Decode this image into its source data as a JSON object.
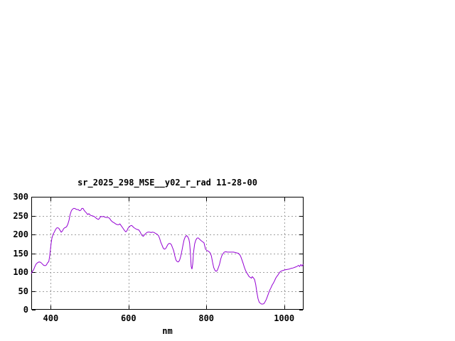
{
  "page": {
    "background": "#ffffff"
  },
  "chart_data": {
    "type": "line",
    "title": "sr_2025_298_MSE__y02_r_rad 11-28-00",
    "xlabel": "nm",
    "ylabel": "",
    "xlim": [
      350,
      1050
    ],
    "ylim": [
      0,
      300
    ],
    "xticks": [
      400,
      600,
      800,
      1000
    ],
    "yticks": [
      0,
      50,
      100,
      150,
      200,
      250,
      300
    ],
    "grid": true,
    "legend": "none",
    "line_color": "#9400d3",
    "grid_color": "#a0a0a0",
    "border_color": "#000000",
    "series": [
      {
        "name": "sr_2025_298_MSE__y02_r_rad",
        "points": [
          [
            350,
            96
          ],
          [
            353,
            102
          ],
          [
            356,
            106
          ],
          [
            359,
            114
          ],
          [
            362,
            121
          ],
          [
            366,
            125
          ],
          [
            370,
            127
          ],
          [
            374,
            126
          ],
          [
            378,
            122
          ],
          [
            382,
            118
          ],
          [
            386,
            117
          ],
          [
            389,
            119
          ],
          [
            392,
            125
          ],
          [
            395,
            128
          ],
          [
            397,
            140
          ],
          [
            399,
            158
          ],
          [
            401,
            176
          ],
          [
            403,
            190
          ],
          [
            406,
            200
          ],
          [
            409,
            206
          ],
          [
            412,
            212
          ],
          [
            415,
            217
          ],
          [
            418,
            218
          ],
          [
            421,
            216
          ],
          [
            424,
            211
          ],
          [
            427,
            206
          ],
          [
            430,
            209
          ],
          [
            433,
            215
          ],
          [
            436,
            218
          ],
          [
            439,
            219
          ],
          [
            441,
            221
          ],
          [
            444,
            227
          ],
          [
            447,
            238
          ],
          [
            450,
            253
          ],
          [
            453,
            263
          ],
          [
            456,
            267
          ],
          [
            459,
            269
          ],
          [
            462,
            269
          ],
          [
            465,
            267
          ],
          [
            468,
            266
          ],
          [
            471,
            266
          ],
          [
            474,
            263
          ],
          [
            477,
            264
          ],
          [
            480,
            269
          ],
          [
            483,
            269
          ],
          [
            486,
            264
          ],
          [
            489,
            260
          ],
          [
            492,
            257
          ],
          [
            495,
            253
          ],
          [
            498,
            255
          ],
          [
            501,
            252
          ],
          [
            504,
            250
          ],
          [
            508,
            249
          ],
          [
            511,
            248
          ],
          [
            514,
            246
          ],
          [
            517,
            243
          ],
          [
            520,
            241
          ],
          [
            523,
            240
          ],
          [
            526,
            244
          ],
          [
            529,
            248
          ],
          [
            532,
            247
          ],
          [
            535,
            248
          ],
          [
            539,
            246
          ],
          [
            543,
            245
          ],
          [
            547,
            245
          ],
          [
            551,
            243
          ],
          [
            555,
            237
          ],
          [
            559,
            233
          ],
          [
            563,
            231
          ],
          [
            567,
            228
          ],
          [
            571,
            226
          ],
          [
            575,
            226
          ],
          [
            578,
            228
          ],
          [
            582,
            222
          ],
          [
            586,
            216
          ],
          [
            590,
            210
          ],
          [
            593,
            207
          ],
          [
            596,
            210
          ],
          [
            599,
            217
          ],
          [
            602,
            220
          ],
          [
            605,
            223
          ],
          [
            608,
            224
          ],
          [
            611,
            221
          ],
          [
            614,
            218
          ],
          [
            617,
            216
          ],
          [
            620,
            214
          ],
          [
            623,
            213
          ],
          [
            626,
            212
          ],
          [
            629,
            208
          ],
          [
            632,
            202
          ],
          [
            635,
            197
          ],
          [
            638,
            195
          ],
          [
            641,
            199
          ],
          [
            644,
            202
          ],
          [
            647,
            205
          ],
          [
            650,
            206
          ],
          [
            654,
            206
          ],
          [
            658,
            205
          ],
          [
            662,
            206
          ],
          [
            666,
            205
          ],
          [
            669,
            203
          ],
          [
            673,
            201
          ],
          [
            677,
            197
          ],
          [
            680,
            189
          ],
          [
            683,
            179
          ],
          [
            686,
            172
          ],
          [
            689,
            164
          ],
          [
            692,
            161
          ],
          [
            695,
            162
          ],
          [
            698,
            167
          ],
          [
            701,
            173
          ],
          [
            704,
            176
          ],
          [
            707,
            176
          ],
          [
            710,
            173
          ],
          [
            713,
            165
          ],
          [
            716,
            157
          ],
          [
            719,
            143
          ],
          [
            722,
            132
          ],
          [
            725,
            128
          ],
          [
            728,
            127
          ],
          [
            731,
            131
          ],
          [
            734,
            141
          ],
          [
            737,
            155
          ],
          [
            740,
            172
          ],
          [
            743,
            186
          ],
          [
            746,
            194
          ],
          [
            749,
            197
          ],
          [
            752,
            194
          ],
          [
            755,
            188
          ],
          [
            757,
            177
          ],
          [
            759,
            152
          ],
          [
            761,
            115
          ],
          [
            763,
            108
          ],
          [
            765,
            122
          ],
          [
            767,
            152
          ],
          [
            770,
            175
          ],
          [
            773,
            185
          ],
          [
            776,
            190
          ],
          [
            779,
            191
          ],
          [
            782,
            188
          ],
          [
            786,
            184
          ],
          [
            790,
            181
          ],
          [
            794,
            178
          ],
          [
            798,
            161
          ],
          [
            802,
            157
          ],
          [
            806,
            155
          ],
          [
            810,
            151
          ],
          [
            813,
            143
          ],
          [
            816,
            126
          ],
          [
            819,
            112
          ],
          [
            822,
            105
          ],
          [
            825,
            102
          ],
          [
            828,
            104
          ],
          [
            831,
            112
          ],
          [
            834,
            121
          ],
          [
            837,
            135
          ],
          [
            840,
            144
          ],
          [
            843,
            149
          ],
          [
            846,
            153
          ],
          [
            850,
            154
          ],
          [
            854,
            153
          ],
          [
            858,
            153
          ],
          [
            862,
            153
          ],
          [
            866,
            153
          ],
          [
            870,
            153
          ],
          [
            874,
            152
          ],
          [
            878,
            151
          ],
          [
            882,
            150
          ],
          [
            886,
            146
          ],
          [
            889,
            140
          ],
          [
            892,
            131
          ],
          [
            895,
            122
          ],
          [
            898,
            112
          ],
          [
            901,
            104
          ],
          [
            904,
            98
          ],
          [
            907,
            93
          ],
          [
            910,
            88
          ],
          [
            913,
            86
          ],
          [
            916,
            84
          ],
          [
            918,
            88
          ],
          [
            921,
            85
          ],
          [
            924,
            80
          ],
          [
            927,
            67
          ],
          [
            930,
            46
          ],
          [
            933,
            29
          ],
          [
            936,
            20
          ],
          [
            939,
            17
          ],
          [
            942,
            15
          ],
          [
            945,
            15
          ],
          [
            948,
            16
          ],
          [
            951,
            21
          ],
          [
            954,
            27
          ],
          [
            957,
            35
          ],
          [
            960,
            44
          ],
          [
            963,
            52
          ],
          [
            966,
            58
          ],
          [
            969,
            65
          ],
          [
            972,
            70
          ],
          [
            975,
            76
          ],
          [
            978,
            83
          ],
          [
            981,
            88
          ],
          [
            984,
            92
          ],
          [
            987,
            97
          ],
          [
            990,
            101
          ],
          [
            993,
            103
          ],
          [
            996,
            104
          ],
          [
            999,
            105
          ],
          [
            1003,
            106
          ],
          [
            1008,
            107
          ],
          [
            1013,
            108
          ],
          [
            1018,
            110
          ],
          [
            1023,
            111
          ],
          [
            1028,
            113
          ],
          [
            1033,
            115
          ],
          [
            1037,
            118
          ],
          [
            1040,
            115
          ],
          [
            1043,
            120
          ],
          [
            1046,
            116
          ],
          [
            1049,
            121
          ]
        ]
      }
    ]
  }
}
